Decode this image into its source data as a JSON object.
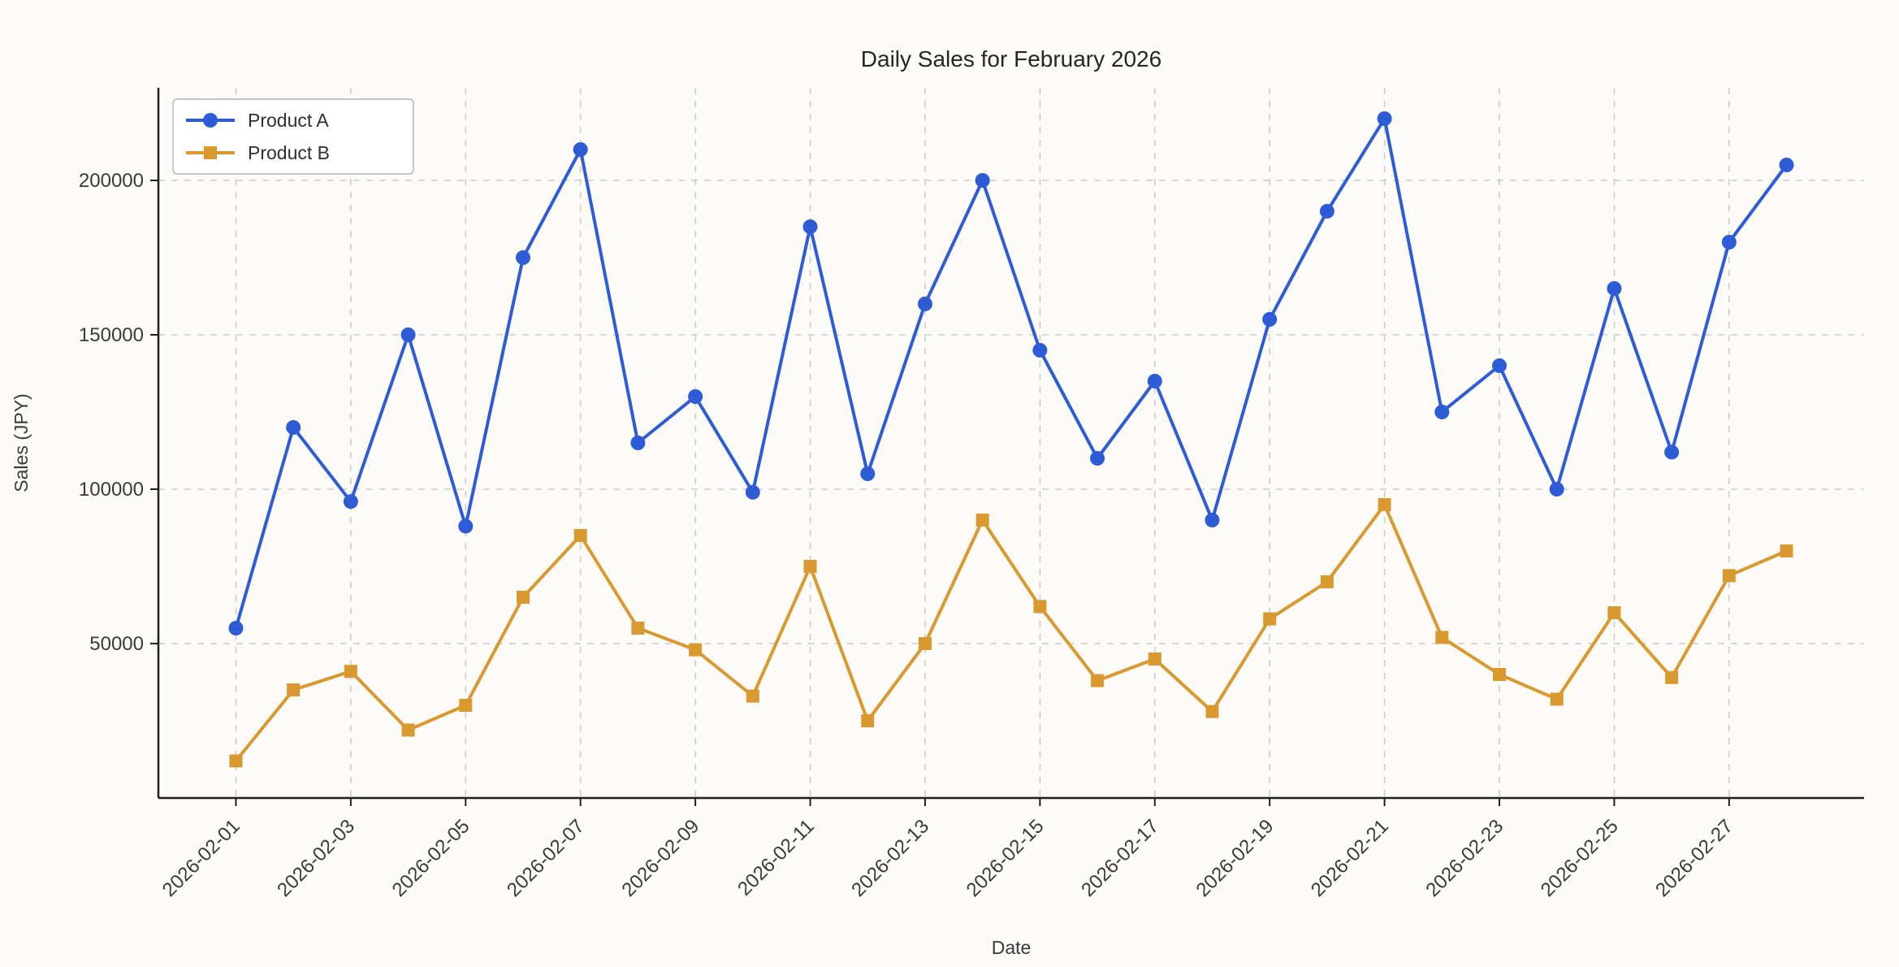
{
  "chart_data": {
    "type": "line",
    "title": "Daily Sales for February 2026",
    "xlabel": "Date",
    "ylabel": "Sales (JPY)",
    "grid": true,
    "legend_position": "upper left",
    "ylim": [
      0,
      230000
    ],
    "yticks": [
      50000,
      100000,
      150000,
      200000
    ],
    "x": [
      "2026-02-01",
      "2026-02-02",
      "2026-02-03",
      "2026-02-04",
      "2026-02-05",
      "2026-02-06",
      "2026-02-07",
      "2026-02-08",
      "2026-02-09",
      "2026-02-10",
      "2026-02-11",
      "2026-02-12",
      "2026-02-13",
      "2026-02-14",
      "2026-02-15",
      "2026-02-16",
      "2026-02-17",
      "2026-02-18",
      "2026-02-19",
      "2026-02-20",
      "2026-02-21",
      "2026-02-22",
      "2026-02-23",
      "2026-02-24",
      "2026-02-25",
      "2026-02-26",
      "2026-02-27",
      "2026-02-28"
    ],
    "xtick_labels": [
      "2026-02-01",
      "2026-02-03",
      "2026-02-05",
      "2026-02-07",
      "2026-02-09",
      "2026-02-11",
      "2026-02-13",
      "2026-02-15",
      "2026-02-17",
      "2026-02-19",
      "2026-02-21",
      "2026-02-23",
      "2026-02-25",
      "2026-02-27"
    ],
    "series": [
      {
        "name": "Product A",
        "marker": "circle",
        "color": "#2e5cd6",
        "values": [
          55000,
          120000,
          96000,
          150000,
          88000,
          175000,
          210000,
          115000,
          130000,
          99000,
          185000,
          105000,
          160000,
          200000,
          145000,
          110000,
          135000,
          90000,
          155000,
          190000,
          220000,
          125000,
          140000,
          100000,
          165000,
          112000,
          180000,
          205000
        ]
      },
      {
        "name": "Product B",
        "marker": "square",
        "color": "#d9992f",
        "values": [
          12000,
          35000,
          41000,
          22000,
          30000,
          65000,
          85000,
          55000,
          48000,
          33000,
          75000,
          25000,
          50000,
          90000,
          62000,
          38000,
          45000,
          28000,
          58000,
          70000,
          95000,
          52000,
          40000,
          32000,
          60000,
          39000,
          72000,
          80000
        ]
      }
    ]
  }
}
